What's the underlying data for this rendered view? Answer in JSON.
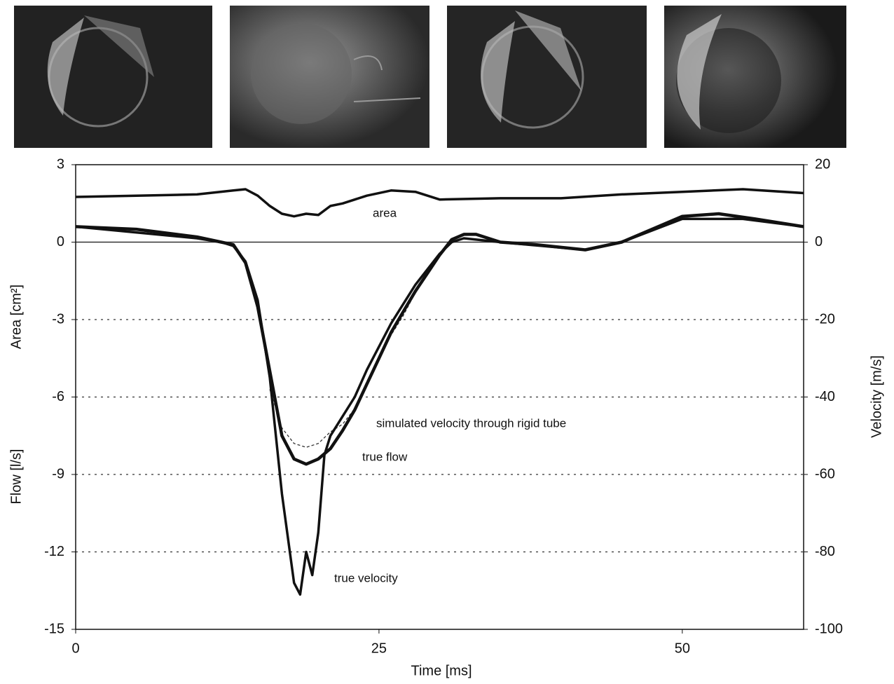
{
  "chart_data": {
    "type": "line",
    "x_label": "Time  [ms]",
    "y_labels": [
      "Flow  [l/s]",
      "Area  [cm²]"
    ],
    "y2_label": "Velocity  [m/s]",
    "xlim": [
      0,
      60
    ],
    "xticks": [
      0,
      25,
      50
    ],
    "ylim": [
      -15,
      3
    ],
    "yticks": [
      3,
      0,
      -3,
      -6,
      -9,
      -12,
      -15
    ],
    "y2lim": [
      -100,
      20
    ],
    "y2ticks": [
      20,
      0,
      -20,
      -40,
      -60,
      -80,
      -100
    ],
    "grid": true,
    "series": [
      {
        "name": "area",
        "color": "#111111",
        "x": [
          0,
          5,
          10,
          13,
          14,
          15,
          16,
          17,
          18,
          19,
          20,
          21,
          22,
          24,
          26,
          28,
          30,
          35,
          40,
          45,
          50,
          55,
          60
        ],
        "values": [
          1.75,
          1.8,
          1.85,
          2.0,
          2.05,
          1.8,
          1.4,
          1.1,
          1.0,
          1.1,
          1.05,
          1.4,
          1.5,
          1.8,
          2.0,
          1.95,
          1.65,
          1.7,
          1.7,
          1.85,
          1.95,
          2.05,
          1.9
        ]
      },
      {
        "name": "simulated velocity through rigid tube",
        "color": "#333333",
        "axis": "y2",
        "x": [
          16,
          17,
          18,
          19,
          20,
          21,
          22,
          23,
          24,
          25,
          26,
          27,
          28,
          29,
          30
        ],
        "values": [
          -38,
          -48,
          -52,
          -53,
          -52,
          -49,
          -47,
          -43,
          -36,
          -30,
          -24,
          -19,
          -13,
          -8,
          -3
        ]
      },
      {
        "name": "true flow",
        "color": "#111111",
        "x": [
          0,
          5,
          10,
          12,
          13,
          14,
          15,
          16,
          17,
          18,
          19,
          20,
          21,
          22,
          23,
          24,
          25,
          26,
          27,
          28,
          29,
          30,
          31,
          32,
          33,
          35,
          38,
          42,
          45,
          48,
          50,
          53,
          56,
          60
        ],
        "values": [
          0.6,
          0.5,
          0.2,
          0,
          -0.1,
          -0.8,
          -2.5,
          -5,
          -7.5,
          -8.4,
          -8.6,
          -8.4,
          -8,
          -7.3,
          -6.5,
          -5.5,
          -4.5,
          -3.5,
          -2.7,
          -1.9,
          -1.2,
          -0.5,
          0.1,
          0.3,
          0.3,
          0,
          -0.1,
          -0.3,
          0,
          0.6,
          1.0,
          1.1,
          0.9,
          0.6
        ]
      },
      {
        "name": "true velocity",
        "color": "#111111",
        "axis": "y2",
        "x": [
          0,
          10,
          12,
          13,
          14,
          15,
          16,
          17,
          18,
          18.5,
          19,
          19.5,
          20,
          20.5,
          21,
          22,
          23,
          24,
          25,
          26,
          27,
          28,
          29,
          30,
          31,
          32,
          35,
          42,
          45,
          50,
          55,
          60
        ],
        "values": [
          4,
          1,
          0,
          -1,
          -5,
          -15,
          -35,
          -65,
          -88,
          -91,
          -80,
          -86,
          -75,
          -55,
          -50,
          -45,
          -40,
          -33,
          -27,
          -21,
          -16,
          -11,
          -7,
          -3,
          0,
          1,
          0,
          -2,
          0,
          6,
          6,
          4
        ]
      }
    ]
  }
}
